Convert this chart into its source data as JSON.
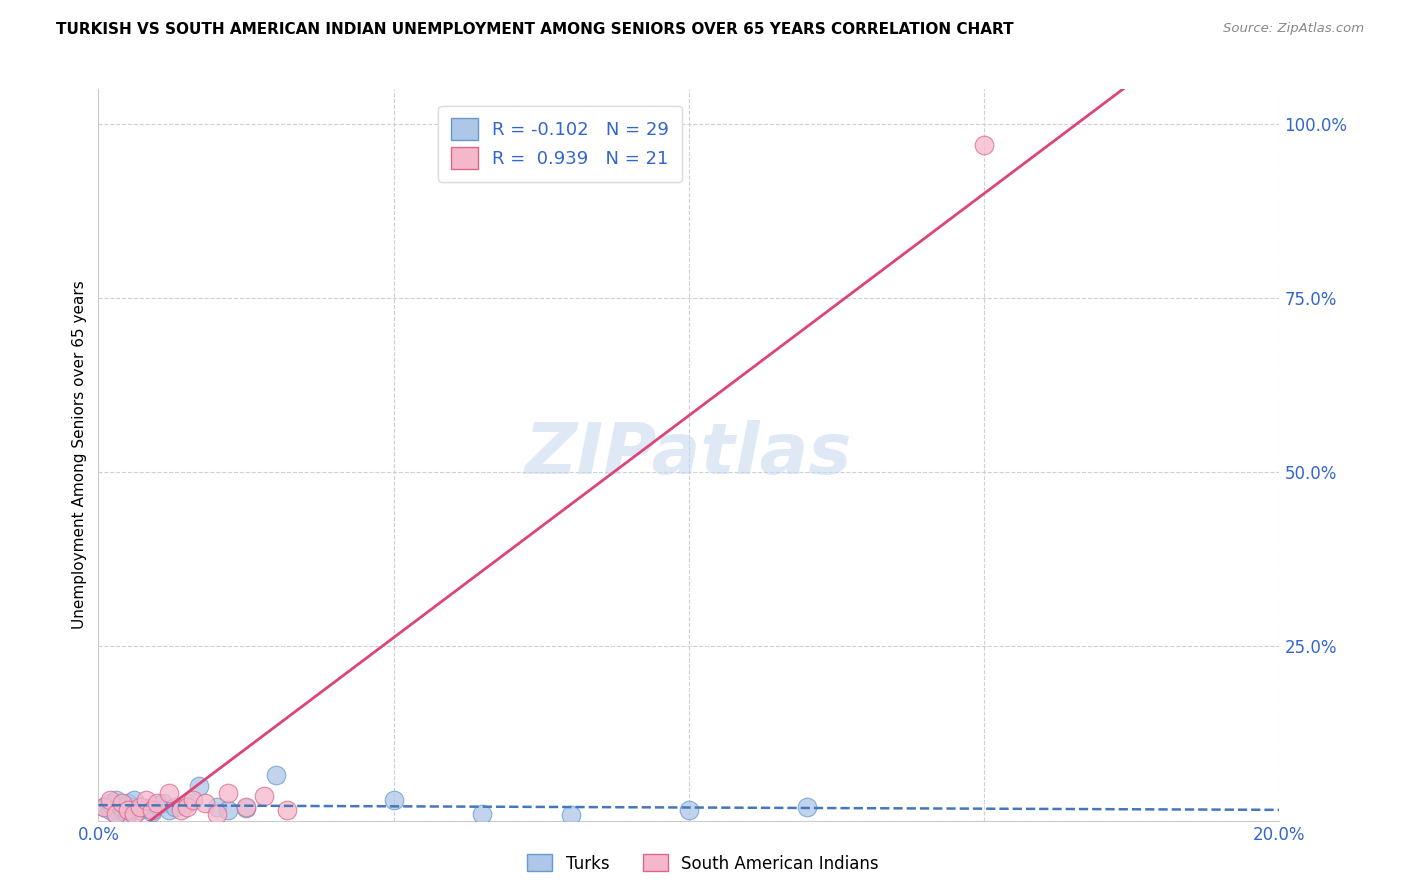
{
  "title": "TURKISH VS SOUTH AMERICAN INDIAN UNEMPLOYMENT AMONG SENIORS OVER 65 YEARS CORRELATION CHART",
  "source": "Source: ZipAtlas.com",
  "ylabel": "Unemployment Among Seniors over 65 years",
  "background_color": "#ffffff",
  "grid_color": "#d0d0d0",
  "turks_color": "#aec6e8",
  "turks_edge_color": "#6699cc",
  "turks_line_color": "#4477bb",
  "sai_color": "#f5b8cb",
  "sai_edge_color": "#dd6688",
  "sai_line_color": "#dd4477",
  "R_turks": -0.102,
  "N_turks": 29,
  "R_sai": 0.939,
  "N_sai": 21,
  "legend_label_turks": "Turks",
  "legend_label_sai": "South American Indians",
  "watermark": "ZIPatlas",
  "label_color": "#3366cc",
  "turks_x": [
    0.001,
    0.002,
    0.002,
    0.003,
    0.003,
    0.004,
    0.004,
    0.005,
    0.005,
    0.006,
    0.006,
    0.007,
    0.008,
    0.009,
    0.01,
    0.011,
    0.012,
    0.013,
    0.015,
    0.017,
    0.02,
    0.022,
    0.025,
    0.03,
    0.05,
    0.065,
    0.08,
    0.1,
    0.12
  ],
  "turks_y": [
    0.02,
    0.015,
    0.025,
    0.01,
    0.03,
    0.015,
    0.02,
    0.025,
    0.01,
    0.02,
    0.03,
    0.015,
    0.018,
    0.012,
    0.022,
    0.025,
    0.015,
    0.02,
    0.025,
    0.05,
    0.02,
    0.015,
    0.018,
    0.065,
    0.03,
    0.01,
    0.008,
    0.015,
    0.02
  ],
  "sai_x": [
    0.001,
    0.002,
    0.003,
    0.004,
    0.005,
    0.006,
    0.007,
    0.008,
    0.009,
    0.01,
    0.012,
    0.014,
    0.015,
    0.016,
    0.018,
    0.02,
    0.022,
    0.025,
    0.028,
    0.032,
    0.15
  ],
  "sai_y": [
    0.02,
    0.03,
    0.01,
    0.025,
    0.015,
    0.01,
    0.02,
    0.03,
    0.015,
    0.025,
    0.04,
    0.015,
    0.02,
    0.03,
    0.025,
    0.01,
    0.04,
    0.02,
    0.035,
    0.015,
    0.97
  ],
  "xlim": [
    0.0,
    0.2
  ],
  "ylim": [
    0.0,
    1.05
  ],
  "yticks": [
    0.0,
    0.25,
    0.5,
    0.75,
    1.0
  ],
  "ytick_labels": [
    "",
    "25.0%",
    "50.0%",
    "75.0%",
    "100.0%"
  ],
  "xticks": [
    0.0,
    0.05,
    0.1,
    0.15,
    0.2
  ],
  "xtick_labels": [
    "0.0%",
    "",
    "",
    "",
    "20.0%"
  ]
}
